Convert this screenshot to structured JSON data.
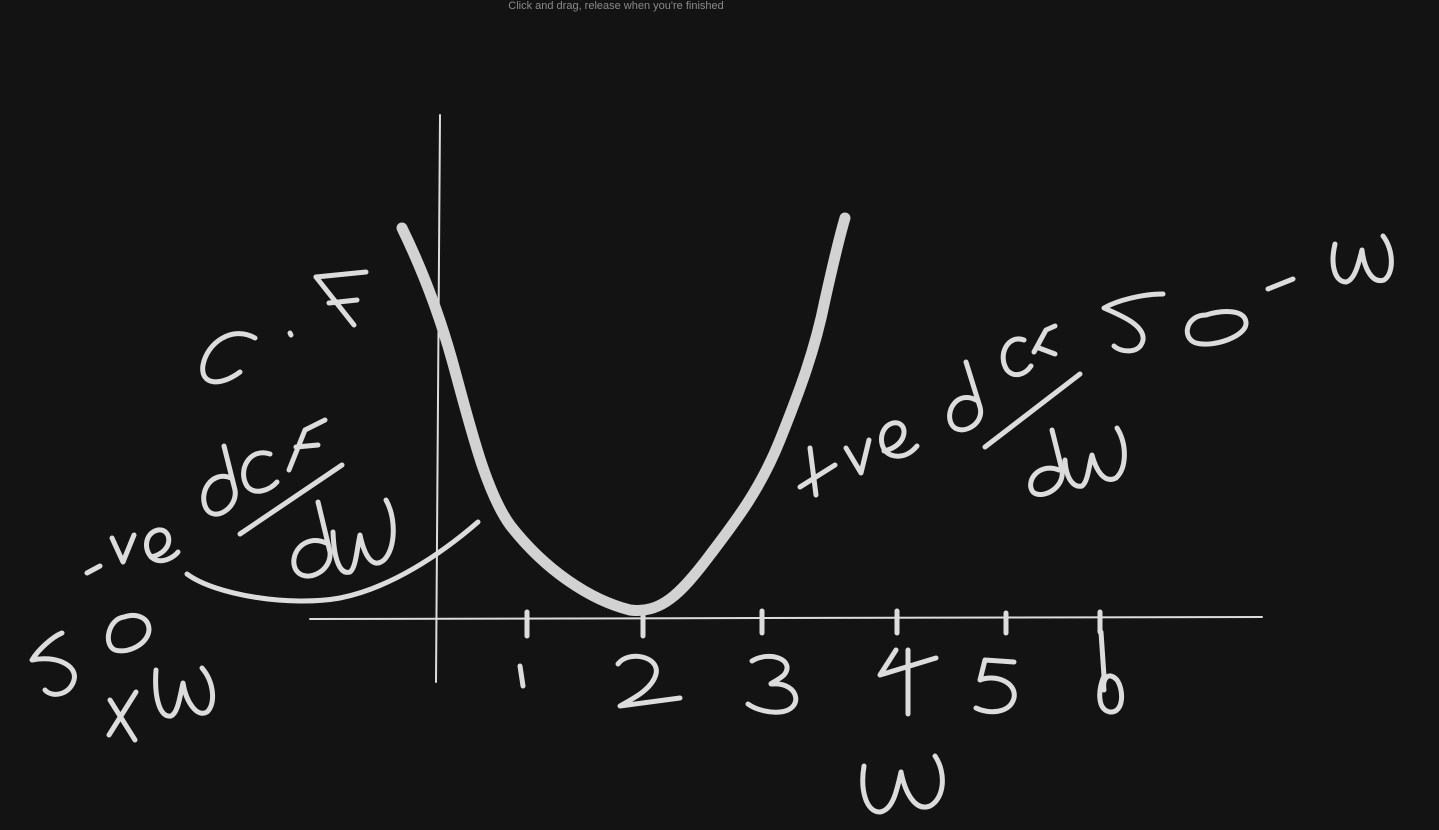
{
  "instruction": "Click and drag, release when you're finished",
  "sketch": {
    "curve_label": "C.F",
    "x_axis_label": "w",
    "tick_labels": [
      "1",
      "2",
      "3",
      "4",
      "5",
      "6"
    ],
    "left_note": "-ve dCF/dw",
    "right_note": "+ve dCF/dw",
    "left_expr": "50/+w",
    "right_expr": "50 - w"
  },
  "colors": {
    "background": "#131313",
    "ink": "#dcdcdc",
    "hint_text": "#8a8a8a"
  }
}
